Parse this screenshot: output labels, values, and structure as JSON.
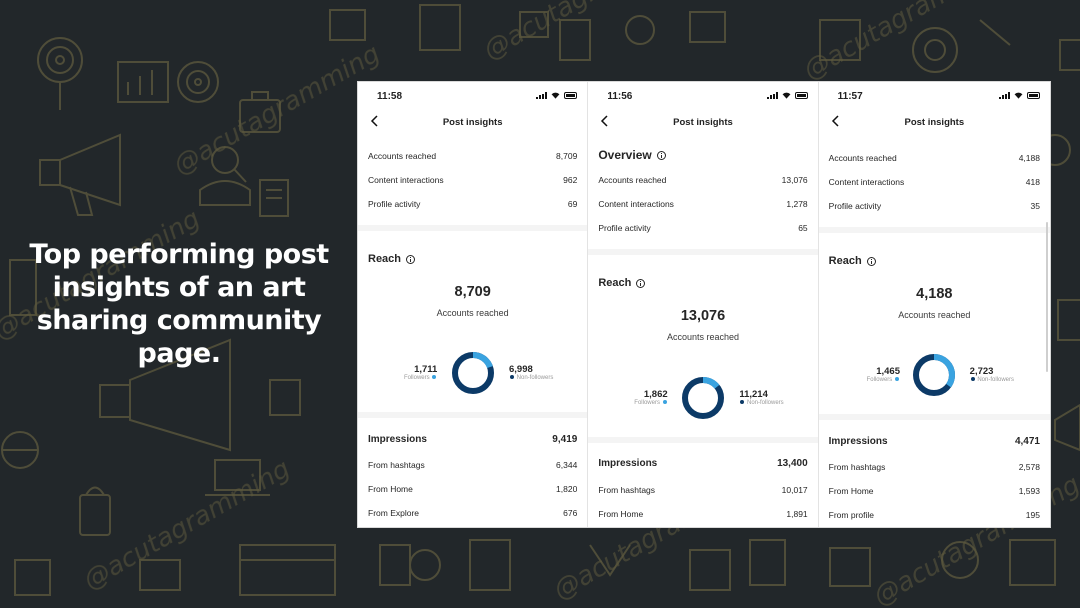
{
  "headline": "Top performing post insights of an art sharing community page.",
  "watermark": "@acutagramming",
  "colors": {
    "background": "#22272a",
    "pattern": "#5e5a3e",
    "followers": "#3aa3e0",
    "non_followers": "#0c3a67"
  },
  "screens": [
    {
      "time": "11:58",
      "nav_title": "Post insights",
      "overview": [
        {
          "label": "Accounts reached",
          "value": "8,709"
        },
        {
          "label": "Content interactions",
          "value": "962"
        },
        {
          "label": "Profile activity",
          "value": "69"
        }
      ],
      "reach": {
        "title": "Reach",
        "total": "8,709",
        "total_label": "Accounts reached",
        "followers": "1,711",
        "followers_label": "Followers",
        "non_followers": "6,998",
        "non_followers_label": "Non-followers",
        "followers_fraction": 0.196
      },
      "impressions": {
        "title": "Impressions",
        "total": "9,419",
        "rows": [
          {
            "label": "From hashtags",
            "value": "6,344"
          },
          {
            "label": "From Home",
            "value": "1,820"
          },
          {
            "label": "From Explore",
            "value": "676"
          }
        ]
      }
    },
    {
      "time": "11:56",
      "nav_title": "Post insights",
      "overview_title": "Overview",
      "overview": [
        {
          "label": "Accounts reached",
          "value": "13,076"
        },
        {
          "label": "Content interactions",
          "value": "1,278"
        },
        {
          "label": "Profile activity",
          "value": "65"
        }
      ],
      "reach": {
        "title": "Reach",
        "total": "13,076",
        "total_label": "Accounts reached",
        "followers": "1,862",
        "followers_label": "Followers",
        "non_followers": "11,214",
        "non_followers_label": "Non-followers",
        "followers_fraction": 0.142
      },
      "impressions": {
        "title": "Impressions",
        "total": "13,400",
        "rows": [
          {
            "label": "From hashtags",
            "value": "10,017"
          },
          {
            "label": "From Home",
            "value": "1,891"
          }
        ]
      }
    },
    {
      "time": "11:57",
      "nav_title": "Post insights",
      "overview": [
        {
          "label": "Accounts reached",
          "value": "4,188"
        },
        {
          "label": "Content interactions",
          "value": "418"
        },
        {
          "label": "Profile activity",
          "value": "35"
        }
      ],
      "reach": {
        "title": "Reach",
        "total": "4,188",
        "total_label": "Accounts reached",
        "followers": "1,465",
        "followers_label": "Followers",
        "non_followers": "2,723",
        "non_followers_label": "Non-followers",
        "followers_fraction": 0.35
      },
      "impressions": {
        "title": "Impressions",
        "total": "4,471",
        "rows": [
          {
            "label": "From hashtags",
            "value": "2,578"
          },
          {
            "label": "From Home",
            "value": "1,593"
          },
          {
            "label": "From profile",
            "value": "195"
          }
        ]
      }
    }
  ]
}
